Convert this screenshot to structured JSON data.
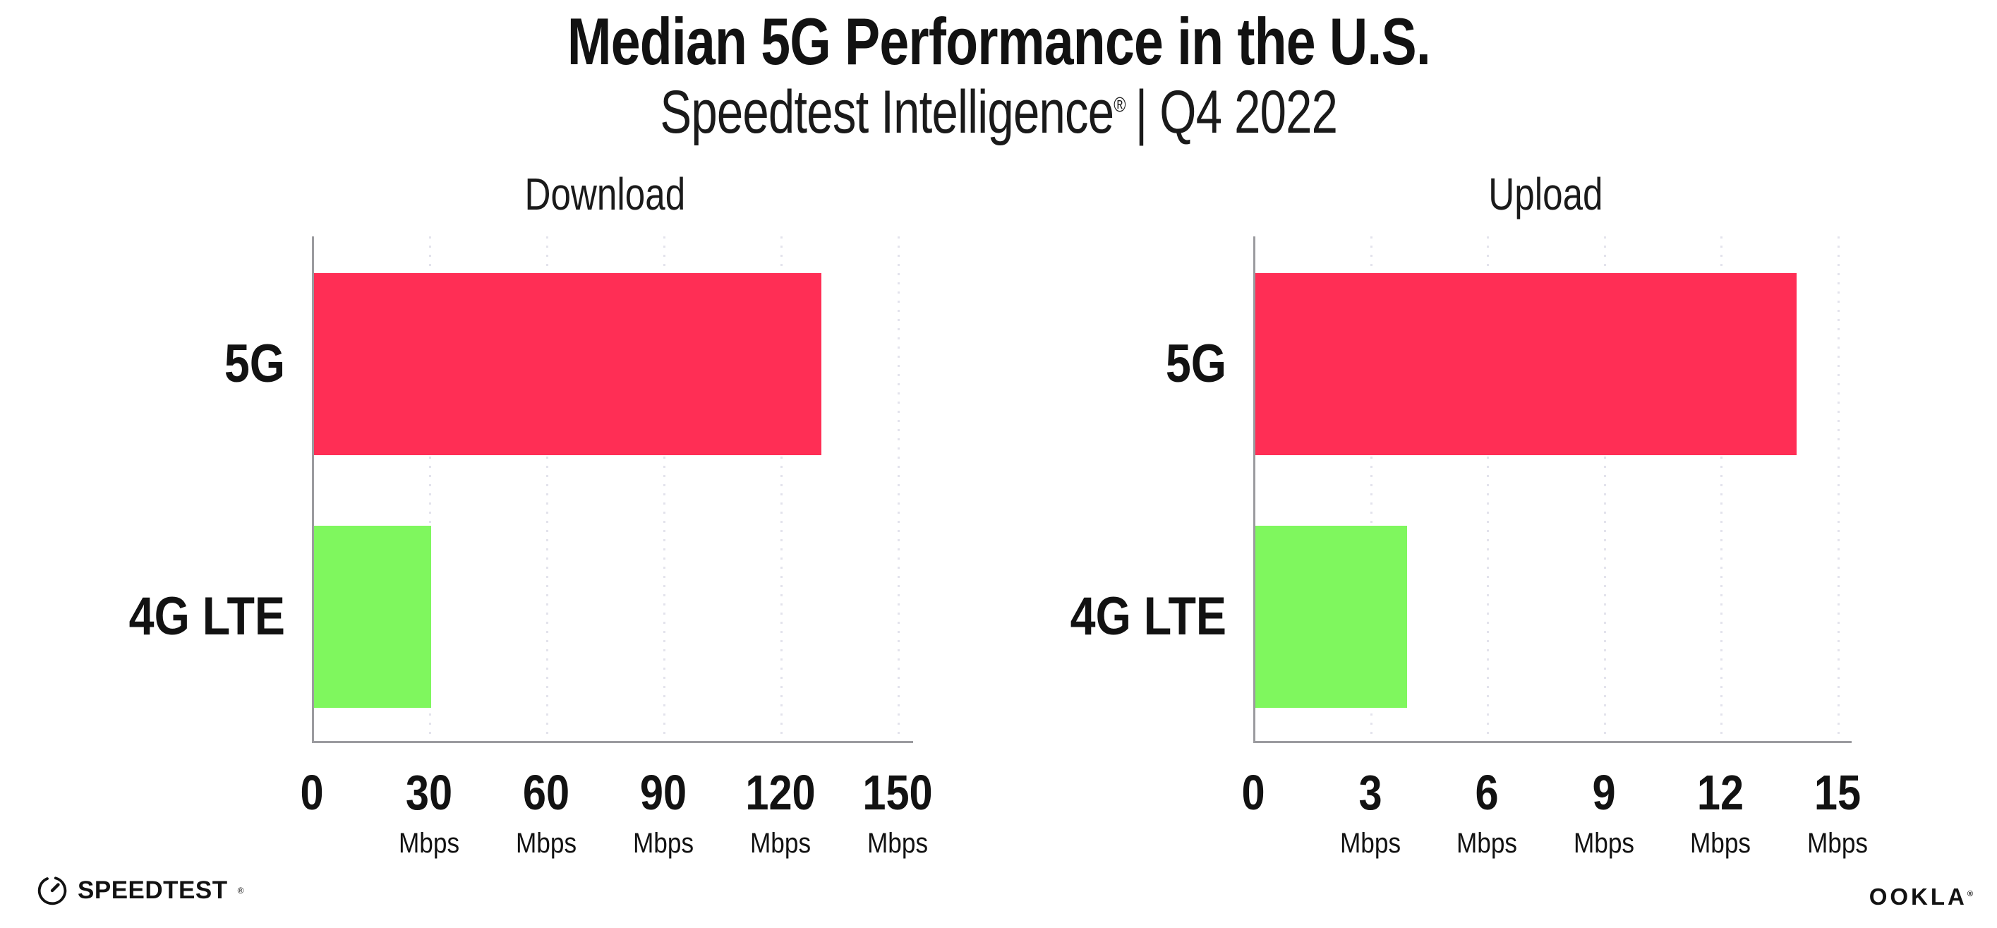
{
  "header": {
    "title": "Median 5G Performance in the U.S.",
    "subtitle": {
      "brand": "Speedtest Intelligence",
      "mark": "®",
      "rest": "| Q4 2022"
    }
  },
  "colors": {
    "bar_5g": "#FF2E55",
    "bar_4g": "#7FF75E",
    "axis": "#9B9B9F",
    "gridline": "#E3E3EC",
    "text": "#121212"
  },
  "chart_data": [
    {
      "type": "bar",
      "orientation": "horizontal",
      "title": "Download",
      "categories": [
        "5G",
        "4G LTE"
      ],
      "values": [
        130,
        30
      ],
      "unit": "Mbps",
      "xlim": [
        0,
        150
      ],
      "xticks": [
        0,
        30,
        60,
        90,
        120,
        150
      ],
      "tick_unit_label": "Mbps",
      "grid": "dotted-vertical",
      "legend": "none",
      "bar_colors": [
        "#FF2E55",
        "#7FF75E"
      ]
    },
    {
      "type": "bar",
      "orientation": "horizontal",
      "title": "Upload",
      "categories": [
        "5G",
        "4G LTE"
      ],
      "values": [
        13.9,
        3.9
      ],
      "unit": "Mbps",
      "xlim": [
        0,
        15
      ],
      "xticks": [
        0,
        3,
        6,
        9,
        12,
        15
      ],
      "tick_unit_label": "Mbps",
      "grid": "dotted-vertical",
      "legend": "none",
      "bar_colors": [
        "#FF2E55",
        "#7FF75E"
      ]
    }
  ],
  "footer": {
    "speedtest_label": "SPEEDTEST",
    "speedtest_mark": "®",
    "speedtest_icon": "gauge-icon",
    "ookla_label": "OOKLA",
    "ookla_mark": "®"
  }
}
